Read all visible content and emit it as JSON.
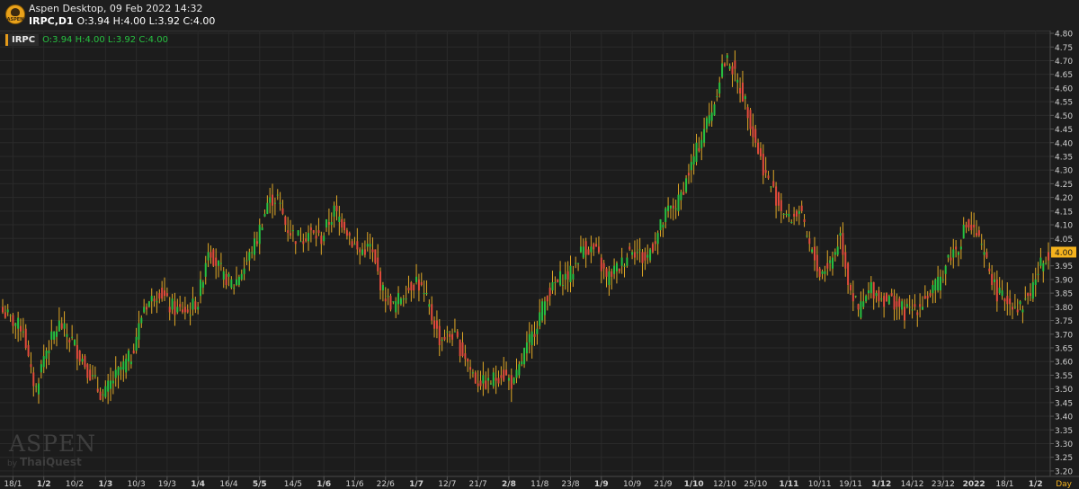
{
  "header": {
    "app_title": "Aspen Desktop, 09 Feb 2022 14:32",
    "quote_symbol": "IRPC,D1",
    "quote_values": "O:3.94 H:4.00 L:3.92 C:4.00",
    "logo_text": "ASPEN"
  },
  "panel": {
    "symbol": "IRPC",
    "ohlc": "O:3.94 H:4.00 L:3.92 C:4.00"
  },
  "watermark": {
    "brand": "ASPEN",
    "by": "by",
    "company": "ThaiQuest"
  },
  "colors": {
    "up": "#27c141",
    "down": "#e24b3b",
    "wick": "#e0a826",
    "grid": "#2a2a2a",
    "last_price_bg": "#f5b31d"
  },
  "chart_data": {
    "type": "candlestick",
    "symbol": "IRPC",
    "timeframe": "D1",
    "ylim": [
      3.18,
      4.81
    ],
    "y_ticks": [
      4.8,
      4.75,
      4.7,
      4.65,
      4.6,
      4.55,
      4.5,
      4.45,
      4.4,
      4.35,
      4.3,
      4.25,
      4.2,
      4.15,
      4.1,
      4.05,
      4.0,
      3.95,
      3.9,
      3.85,
      3.8,
      3.75,
      3.7,
      3.65,
      3.6,
      3.55,
      3.5,
      3.45,
      3.4,
      3.35,
      3.3,
      3.25,
      3.2
    ],
    "last_price": "4.00",
    "x_axis_label": "Day",
    "x_ticks": [
      {
        "label": "18/1",
        "bold": false
      },
      {
        "label": "1/2",
        "bold": true
      },
      {
        "label": "10/2",
        "bold": false
      },
      {
        "label": "1/3",
        "bold": true
      },
      {
        "label": "10/3",
        "bold": false
      },
      {
        "label": "19/3",
        "bold": false
      },
      {
        "label": "1/4",
        "bold": true
      },
      {
        "label": "16/4",
        "bold": false
      },
      {
        "label": "5/5",
        "bold": true
      },
      {
        "label": "14/5",
        "bold": false
      },
      {
        "label": "1/6",
        "bold": true
      },
      {
        "label": "11/6",
        "bold": false
      },
      {
        "label": "22/6",
        "bold": false
      },
      {
        "label": "1/7",
        "bold": true
      },
      {
        "label": "12/7",
        "bold": false
      },
      {
        "label": "21/7",
        "bold": false
      },
      {
        "label": "2/8",
        "bold": true
      },
      {
        "label": "11/8",
        "bold": false
      },
      {
        "label": "23/8",
        "bold": false
      },
      {
        "label": "1/9",
        "bold": true
      },
      {
        "label": "10/9",
        "bold": false
      },
      {
        "label": "21/9",
        "bold": false
      },
      {
        "label": "1/10",
        "bold": true
      },
      {
        "label": "12/10",
        "bold": false
      },
      {
        "label": "25/10",
        "bold": false
      },
      {
        "label": "1/11",
        "bold": true
      },
      {
        "label": "10/11",
        "bold": false
      },
      {
        "label": "19/11",
        "bold": false
      },
      {
        "label": "1/12",
        "bold": true
      },
      {
        "label": "14/12",
        "bold": false
      },
      {
        "label": "23/12",
        "bold": false
      },
      {
        "label": "2022",
        "bold": true
      },
      {
        "label": "18/1",
        "bold": false
      },
      {
        "label": "1/2",
        "bold": true
      }
    ],
    "close_path": [
      {
        "x": 0,
        "close": 3.78
      },
      {
        "x": 4,
        "close": 3.75
      },
      {
        "x": 8,
        "close": 3.72
      },
      {
        "x": 11,
        "close": 3.55
      },
      {
        "x": 13,
        "close": 3.5
      },
      {
        "x": 16,
        "close": 3.62
      },
      {
        "x": 22,
        "close": 3.74
      },
      {
        "x": 28,
        "close": 3.66
      },
      {
        "x": 33,
        "close": 3.57
      },
      {
        "x": 39,
        "close": 3.47
      },
      {
        "x": 44,
        "close": 3.55
      },
      {
        "x": 50,
        "close": 3.62
      },
      {
        "x": 55,
        "close": 3.8
      },
      {
        "x": 61,
        "close": 3.86
      },
      {
        "x": 65,
        "close": 3.8
      },
      {
        "x": 72,
        "close": 3.78
      },
      {
        "x": 76,
        "close": 3.82
      },
      {
        "x": 80,
        "close": 4.02
      },
      {
        "x": 86,
        "close": 3.91
      },
      {
        "x": 90,
        "close": 3.88
      },
      {
        "x": 94,
        "close": 3.95
      },
      {
        "x": 99,
        "close": 4.05
      },
      {
        "x": 103,
        "close": 4.18
      },
      {
        "x": 107,
        "close": 4.2
      },
      {
        "x": 110,
        "close": 4.1
      },
      {
        "x": 114,
        "close": 4.05
      },
      {
        "x": 119,
        "close": 4.07
      },
      {
        "x": 124,
        "close": 4.05
      },
      {
        "x": 129,
        "close": 4.15
      },
      {
        "x": 133,
        "close": 4.1
      },
      {
        "x": 138,
        "close": 4.0
      },
      {
        "x": 143,
        "close": 4.02
      },
      {
        "x": 148,
        "close": 3.85
      },
      {
        "x": 152,
        "close": 3.8
      },
      {
        "x": 157,
        "close": 3.86
      },
      {
        "x": 161,
        "close": 3.9
      },
      {
        "x": 165,
        "close": 3.82
      },
      {
        "x": 170,
        "close": 3.68
      },
      {
        "x": 175,
        "close": 3.7
      },
      {
        "x": 180,
        "close": 3.62
      },
      {
        "x": 184,
        "close": 3.53
      },
      {
        "x": 189,
        "close": 3.52
      },
      {
        "x": 194,
        "close": 3.56
      },
      {
        "x": 199,
        "close": 3.52
      },
      {
        "x": 203,
        "close": 3.63
      },
      {
        "x": 207,
        "close": 3.72
      },
      {
        "x": 212,
        "close": 3.85
      },
      {
        "x": 217,
        "close": 3.9
      },
      {
        "x": 221,
        "close": 3.92
      },
      {
        "x": 226,
        "close": 4.02
      },
      {
        "x": 231,
        "close": 4.0
      },
      {
        "x": 235,
        "close": 3.9
      },
      {
        "x": 240,
        "close": 3.95
      },
      {
        "x": 245,
        "close": 4.02
      },
      {
        "x": 250,
        "close": 3.97
      },
      {
        "x": 254,
        "close": 4.05
      },
      {
        "x": 259,
        "close": 4.15
      },
      {
        "x": 263,
        "close": 4.18
      },
      {
        "x": 268,
        "close": 4.32
      },
      {
        "x": 273,
        "close": 4.45
      },
      {
        "x": 277,
        "close": 4.55
      },
      {
        "x": 280,
        "close": 4.68
      },
      {
        "x": 283,
        "close": 4.7
      },
      {
        "x": 286,
        "close": 4.62
      },
      {
        "x": 289,
        "close": 4.55
      },
      {
        "x": 293,
        "close": 4.4
      },
      {
        "x": 297,
        "close": 4.28
      },
      {
        "x": 302,
        "close": 4.18
      },
      {
        "x": 306,
        "close": 4.12
      },
      {
        "x": 310,
        "close": 4.15
      },
      {
        "x": 314,
        "close": 4.02
      },
      {
        "x": 318,
        "close": 3.92
      },
      {
        "x": 322,
        "close": 3.96
      },
      {
        "x": 326,
        "close": 4.06
      },
      {
        "x": 329,
        "close": 3.9
      },
      {
        "x": 333,
        "close": 3.78
      },
      {
        "x": 338,
        "close": 3.87
      },
      {
        "x": 342,
        "close": 3.83
      },
      {
        "x": 347,
        "close": 3.82
      },
      {
        "x": 351,
        "close": 3.78
      },
      {
        "x": 356,
        "close": 3.8
      },
      {
        "x": 360,
        "close": 3.84
      },
      {
        "x": 364,
        "close": 3.88
      },
      {
        "x": 368,
        "close": 3.98
      },
      {
        "x": 372,
        "close": 4.02
      },
      {
        "x": 375,
        "close": 4.1
      },
      {
        "x": 379,
        "close": 4.06
      },
      {
        "x": 383,
        "close": 3.96
      },
      {
        "x": 387,
        "close": 3.85
      },
      {
        "x": 392,
        "close": 3.82
      },
      {
        "x": 396,
        "close": 3.8
      },
      {
        "x": 400,
        "close": 3.85
      },
      {
        "x": 404,
        "close": 3.95
      },
      {
        "x": 407,
        "close": 4.0
      }
    ],
    "last_index": 407
  }
}
